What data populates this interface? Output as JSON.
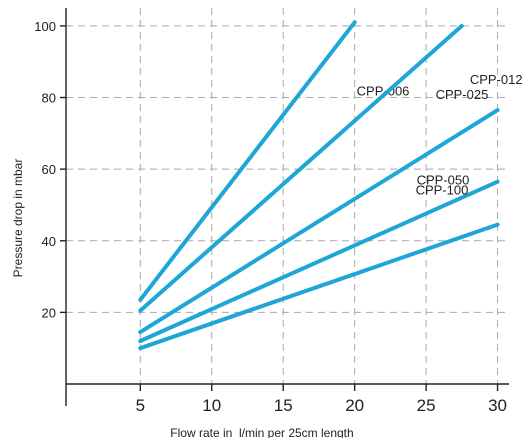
{
  "chart_data": {
    "type": "line",
    "xlabel": "Flow rate in  l/min per 25cm length",
    "ylabel": "Pressure drop in mbar",
    "xlim": [
      -0.2,
      30.8
    ],
    "ylim": [
      0,
      105
    ],
    "x_axis_at_y": 0,
    "xticks": [
      5,
      10,
      15,
      20,
      25,
      30
    ],
    "yticks": [
      20,
      40,
      60,
      80,
      100
    ],
    "grid": true,
    "line_color": "#1ea6d6",
    "series": [
      {
        "name": "CPP-006",
        "x": [
          5,
          20
        ],
        "y": [
          23.5,
          101
        ]
      },
      {
        "name": "CPP-012",
        "x": [
          5,
          27.5
        ],
        "y": [
          20.5,
          100
        ]
      },
      {
        "name": "CPP-025",
        "x": [
          5,
          30
        ],
        "y": [
          14.5,
          76.5
        ]
      },
      {
        "name": "CPP-050",
        "x": [
          5,
          30
        ],
        "y": [
          12,
          56.5
        ]
      },
      {
        "name": "CPP-100",
        "x": [
          5,
          30
        ],
        "y": [
          10,
          44.5
        ]
      }
    ]
  }
}
